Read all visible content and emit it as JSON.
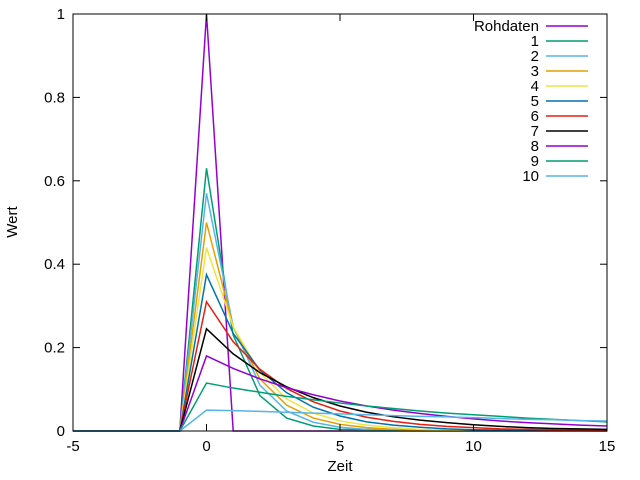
{
  "chart_data": {
    "type": "line",
    "title": "",
    "xlabel": "Zeit",
    "ylabel": "Wert",
    "xlim": [
      -5,
      15
    ],
    "ylim": [
      0,
      1
    ],
    "xticks": [
      -5,
      0,
      5,
      10,
      15
    ],
    "xtick_labels": [
      "-5",
      "0",
      "5",
      "10",
      "15"
    ],
    "yticks": [
      0,
      0.2,
      0.4,
      0.6,
      0.8,
      1
    ],
    "ytick_labels": [
      "0",
      "0.2",
      "0.4",
      "0.6",
      "0.8",
      "1"
    ],
    "grid": false,
    "legend_position": "top-right",
    "series": [
      {
        "name": "Rohdaten",
        "color": "#9400d3",
        "x": [
          -5,
          -1,
          0,
          1,
          2,
          15
        ],
        "y": [
          0,
          0,
          1,
          0,
          0,
          0
        ]
      },
      {
        "name": "1",
        "color": "#009e73",
        "x": [
          -5,
          -1,
          0,
          1,
          2,
          3,
          4,
          5,
          15
        ],
        "y": [
          0,
          0,
          0.63,
          0.23,
          0.085,
          0.031,
          0.012,
          0.004,
          0
        ]
      },
      {
        "name": "2",
        "color": "#56b4e9",
        "x": [
          -5,
          -1,
          0,
          1,
          2,
          3,
          4,
          5,
          6,
          15
        ],
        "y": [
          0,
          0,
          0.57,
          0.25,
          0.11,
          0.048,
          0.021,
          0.009,
          0.004,
          0
        ]
      },
      {
        "name": "3",
        "color": "#e69f00",
        "x": [
          -5,
          -1,
          0,
          1,
          2,
          3,
          4,
          5,
          6,
          7,
          8,
          15
        ],
        "y": [
          0,
          0,
          0.5,
          0.25,
          0.125,
          0.062,
          0.031,
          0.016,
          0.008,
          0.004,
          0.002,
          0
        ]
      },
      {
        "name": "4",
        "color": "#f0e442",
        "x": [
          -5,
          -1,
          0,
          1,
          2,
          3,
          4,
          5,
          6,
          7,
          8,
          9,
          15
        ],
        "y": [
          0,
          0,
          0.44,
          0.25,
          0.14,
          0.077,
          0.043,
          0.024,
          0.014,
          0.008,
          0.004,
          0.002,
          0
        ]
      },
      {
        "name": "5",
        "color": "#0072b2",
        "x": [
          -5,
          -1,
          0,
          1,
          2,
          3,
          4,
          5,
          6,
          7,
          8,
          9,
          10,
          15
        ],
        "y": [
          0,
          0,
          0.375,
          0.234,
          0.146,
          0.092,
          0.057,
          0.036,
          0.022,
          0.014,
          0.009,
          0.005,
          0.003,
          0
        ]
      },
      {
        "name": "6",
        "color": "#e51e10",
        "x": [
          -5,
          -1,
          0,
          1,
          2,
          3,
          4,
          5,
          6,
          7,
          8,
          9,
          10,
          11,
          12,
          15
        ],
        "y": [
          0,
          0,
          0.31,
          0.214,
          0.148,
          0.102,
          0.07,
          0.048,
          0.033,
          0.023,
          0.016,
          0.011,
          0.008,
          0.005,
          0.004,
          0.001
        ]
      },
      {
        "name": "7",
        "color": "#000000",
        "x": [
          -5,
          -1,
          0,
          1,
          2,
          3,
          4,
          5,
          6,
          7,
          8,
          9,
          10,
          11,
          12,
          13,
          14,
          15
        ],
        "y": [
          0,
          0,
          0.245,
          0.185,
          0.14,
          0.106,
          0.08,
          0.06,
          0.045,
          0.034,
          0.026,
          0.02,
          0.015,
          0.011,
          0.008,
          0.006,
          0.005,
          0.004
        ]
      },
      {
        "name": "8",
        "color": "#9400d3",
        "x": [
          -5,
          -1,
          0,
          1,
          2,
          3,
          4,
          5,
          6,
          7,
          8,
          9,
          10,
          11,
          12,
          13,
          14,
          15
        ],
        "y": [
          0,
          0,
          0.18,
          0.15,
          0.125,
          0.104,
          0.087,
          0.072,
          0.06,
          0.05,
          0.042,
          0.035,
          0.029,
          0.024,
          0.02,
          0.017,
          0.014,
          0.012
        ]
      },
      {
        "name": "9",
        "color": "#009e73",
        "x": [
          -5,
          -1,
          0,
          1,
          2,
          3,
          4,
          5,
          6,
          7,
          8,
          9,
          10,
          11,
          12,
          13,
          14,
          15
        ],
        "y": [
          0,
          0,
          0.115,
          0.103,
          0.093,
          0.083,
          0.075,
          0.067,
          0.06,
          0.054,
          0.048,
          0.043,
          0.039,
          0.035,
          0.031,
          0.028,
          0.025,
          0.022
        ]
      },
      {
        "name": "10",
        "color": "#56b4e9",
        "x": [
          -5,
          -1,
          0,
          1,
          2,
          3,
          4,
          5,
          6,
          7,
          8,
          9,
          10,
          11,
          12,
          13,
          14,
          15
        ],
        "y": [
          0,
          0,
          0.05,
          0.049,
          0.047,
          0.045,
          0.043,
          0.041,
          0.039,
          0.037,
          0.035,
          0.034,
          0.032,
          0.03,
          0.028,
          0.027,
          0.025,
          0.024
        ]
      }
    ]
  }
}
